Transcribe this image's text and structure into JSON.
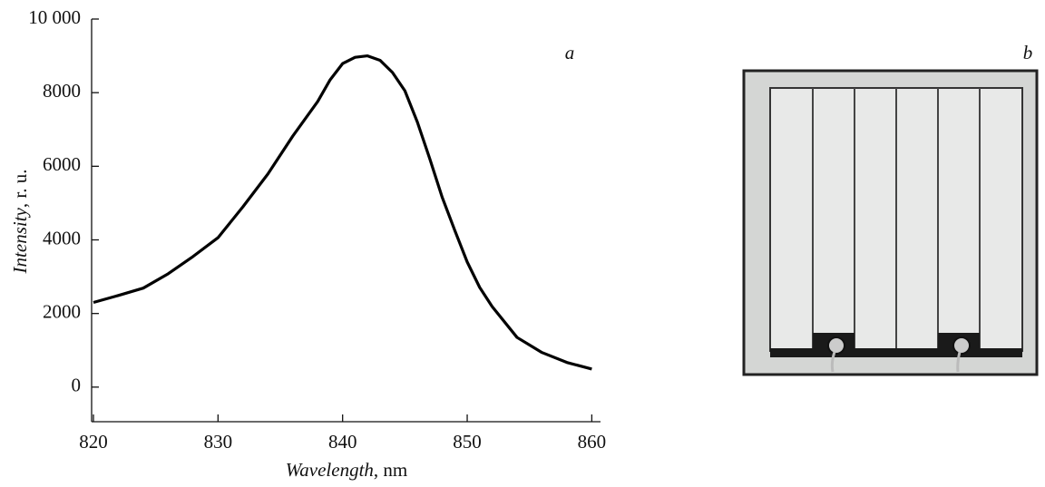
{
  "chart_data": {
    "type": "line",
    "xlabel": {
      "italic": "Wavelength",
      "text": ", nm"
    },
    "ylabel": {
      "italic": "Intensity",
      "text": ", r. u."
    },
    "panel_a": "a",
    "panel_b": "b",
    "x": [
      820,
      822,
      824,
      826,
      828,
      830,
      832,
      834,
      836,
      838,
      839,
      840,
      841,
      842,
      843,
      844,
      845,
      846,
      847,
      848,
      849,
      850,
      851,
      852,
      854,
      856,
      858,
      860
    ],
    "series": [
      {
        "color": "#000000",
        "values": [
          2300,
          2490,
          2690,
          3080,
          3550,
          4060,
          4900,
          5790,
          6820,
          7760,
          8350,
          8790,
          8960,
          9000,
          8880,
          8550,
          8050,
          7200,
          6200,
          5150,
          4260,
          3400,
          2710,
          2190,
          1350,
          940,
          670,
          490
        ]
      }
    ],
    "xlim": [
      820,
      860.7
    ],
    "xticks": [
      820,
      830,
      840,
      850,
      860
    ],
    "ylim": [
      -940,
      10000
    ],
    "yticks": [
      0,
      2000,
      4000,
      6000,
      8000,
      {
        "value": 10000,
        "label": "10 000"
      }
    ]
  }
}
